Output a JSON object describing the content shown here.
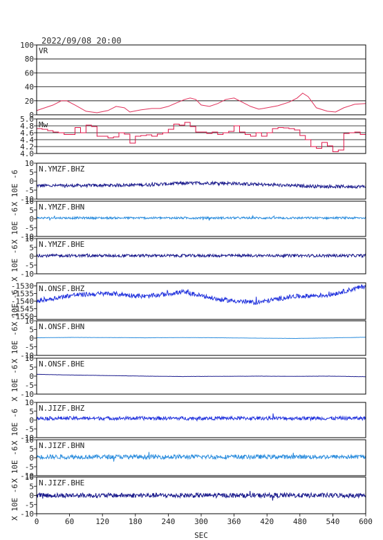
{
  "header": {
    "title": "2022/09/08 20:00"
  },
  "x_axis": {
    "label": "SEC",
    "ticks": [
      "0",
      "60",
      "120",
      "180",
      "240",
      "300",
      "360",
      "420",
      "480",
      "540",
      "600"
    ]
  },
  "colors": {
    "vr": "#e0305a",
    "mw": "#dd1144",
    "dark_blue": "#1a1a8c",
    "blue": "#2233dd",
    "light_blue": "#2a8cdd",
    "frame": "#000000"
  },
  "chart_data": [
    {
      "type": "line",
      "label": "VR",
      "xlim": [
        0,
        600
      ],
      "ylim": [
        0,
        100
      ],
      "yticks": [
        "0",
        "20",
        "40",
        "60",
        "80",
        "100"
      ],
      "color": "#e0305a",
      "grid": true,
      "x": [
        0,
        15,
        30,
        45,
        55,
        70,
        90,
        110,
        130,
        145,
        160,
        170,
        190,
        210,
        225,
        240,
        255,
        270,
        280,
        290,
        300,
        315,
        330,
        345,
        360,
        375,
        390,
        405,
        420,
        440,
        460,
        475,
        485,
        495,
        510,
        530,
        545,
        560,
        580,
        600
      ],
      "y": [
        6,
        10,
        14,
        20,
        20,
        14,
        5,
        3,
        6,
        12,
        10,
        4,
        7,
        9,
        9,
        12,
        17,
        22,
        24,
        22,
        14,
        12,
        16,
        22,
        24,
        18,
        12,
        8,
        10,
        13,
        18,
        24,
        31,
        26,
        10,
        5,
        4,
        10,
        15,
        16
      ]
    },
    {
      "type": "line",
      "label": "Mw",
      "xlim": [
        0,
        600
      ],
      "ylim": [
        4.0,
        5.0
      ],
      "yticks": [
        "4.0",
        "4.2",
        "4.4",
        "4.6",
        "4.8",
        "5.0"
      ],
      "color": "#dd1144",
      "grid": true,
      "x": [
        0,
        10,
        20,
        30,
        40,
        50,
        60,
        70,
        80,
        90,
        100,
        110,
        120,
        130,
        140,
        150,
        160,
        170,
        180,
        190,
        200,
        210,
        220,
        230,
        240,
        250,
        260,
        270,
        280,
        290,
        300,
        310,
        320,
        330,
        340,
        350,
        360,
        370,
        380,
        390,
        400,
        410,
        420,
        430,
        440,
        450,
        460,
        470,
        480,
        490,
        500,
        510,
        520,
        530,
        540,
        550,
        560,
        570,
        580,
        590,
        600
      ],
      "y": [
        4.72,
        4.7,
        4.66,
        4.62,
        4.6,
        4.55,
        4.55,
        4.75,
        4.6,
        4.82,
        4.78,
        4.5,
        4.5,
        4.45,
        4.48,
        4.6,
        4.56,
        4.3,
        4.5,
        4.52,
        4.54,
        4.5,
        4.56,
        4.6,
        4.7,
        4.85,
        4.82,
        4.9,
        4.78,
        4.62,
        4.62,
        4.58,
        4.62,
        4.55,
        4.6,
        4.64,
        4.8,
        4.62,
        4.55,
        4.5,
        4.6,
        4.5,
        4.6,
        4.72,
        4.75,
        4.74,
        4.72,
        4.68,
        4.52,
        4.4,
        4.2,
        4.15,
        4.32,
        4.22,
        4.05,
        4.1,
        4.58,
        4.6,
        4.62,
        4.55,
        4.6
      ]
    },
    {
      "type": "line",
      "label": "N.YMZF.BHZ",
      "ylabel": "X 10E -6",
      "ylim": [
        -10,
        10
      ],
      "yticks": [
        "-10",
        "-5",
        "0",
        "5",
        "10"
      ],
      "color": "#1a1a8c",
      "baseline": [
        -2.5,
        -2.5,
        -2.3,
        -2,
        -1.2,
        -1,
        -1.8,
        -2.5,
        -3,
        -3
      ],
      "noise": 0.9
    },
    {
      "type": "line",
      "label": "N.YMZF.BHN",
      "ylabel": "X 10E -6",
      "ylim": [
        -10,
        10
      ],
      "yticks": [
        "-10",
        "-5",
        "0",
        "5",
        "10"
      ],
      "color": "#2a8cdd",
      "baseline": [
        0.5,
        0.5,
        0.5,
        0.5,
        0.5,
        0.5,
        0.5,
        0.5,
        0.5,
        0.5
      ],
      "noise": 0.6
    },
    {
      "type": "line",
      "label": "N.YMZF.BHE",
      "ylabel": "X 10E -6",
      "ylim": [
        -10,
        10
      ],
      "yticks": [
        "-10",
        "-5",
        "0",
        "5",
        "10"
      ],
      "color": "#1a1a8c",
      "baseline": [
        0.3,
        0.3,
        0.3,
        0.3,
        0.3,
        0.3,
        0.3,
        0.3,
        0.3,
        0.3
      ],
      "noise": 0.8
    },
    {
      "type": "line",
      "label": "N.ONSF.BHZ",
      "ylabel": "X 10E -6",
      "ylim": [
        -1552,
        -1528
      ],
      "yticks": [
        "-1530",
        "-1535",
        "-1540",
        "-1545",
        "-1550"
      ],
      "color": "#2233dd",
      "baseline": [
        -1540,
        -1536,
        -1535,
        -1537,
        -1534,
        -1539,
        -1541,
        -1537,
        -1536,
        -1530
      ],
      "noise": 1.5
    },
    {
      "type": "line",
      "label": "N.ONSF.BHN",
      "ylabel": "X 10E -6",
      "ylim": [
        -10,
        10
      ],
      "yticks": [
        "-10",
        "-5",
        "0",
        "5",
        "10"
      ],
      "color": "#2a8cdd",
      "baseline": [
        0.2,
        0.4,
        0.3,
        0.2,
        0.3,
        0.2,
        0,
        -0.2,
        0.1,
        0.5
      ],
      "noise": 0.05
    },
    {
      "type": "line",
      "label": "N.ONSF.BHE",
      "ylabel": "X 10E -6",
      "ylim": [
        -10,
        10
      ],
      "yticks": [
        "-10",
        "-5",
        "0",
        "5",
        "10"
      ],
      "color": "#1a1a8c",
      "baseline": [
        1,
        0.6,
        0.3,
        0,
        -0.2,
        -0.1,
        0,
        -0.1,
        0,
        -0.3
      ],
      "noise": 0.05
    },
    {
      "type": "line",
      "label": "N.JIZF.BHZ",
      "ylabel": "X 10E -6",
      "ylim": [
        -10,
        10
      ],
      "yticks": [
        "-10",
        "-5",
        "0",
        "5",
        "10"
      ],
      "color": "#2233dd",
      "baseline": [
        1,
        1,
        1,
        1,
        1,
        1,
        1,
        1,
        1,
        1
      ],
      "noise": 1.0
    },
    {
      "type": "line",
      "label": "N.JIZF.BHN",
      "ylabel": "X 10E -6",
      "ylim": [
        -10,
        10
      ],
      "yticks": [
        "-10",
        "-5",
        "0",
        "5",
        "10"
      ],
      "color": "#2a8cdd",
      "baseline": [
        0.5,
        0.5,
        0.5,
        0.5,
        0.5,
        0.5,
        0.5,
        0.5,
        0.5,
        0.5
      ],
      "noise": 1.2
    },
    {
      "type": "line",
      "label": "N.JIZF.BHE",
      "ylabel": "X 10E -6",
      "ylim": [
        -10,
        10
      ],
      "yticks": [
        "-10",
        "-5",
        "0",
        "5",
        "10"
      ],
      "color": "#1a1a8c",
      "baseline": [
        0,
        0,
        0,
        0,
        0,
        0,
        0,
        0,
        0,
        0
      ],
      "noise": 1.3
    }
  ]
}
